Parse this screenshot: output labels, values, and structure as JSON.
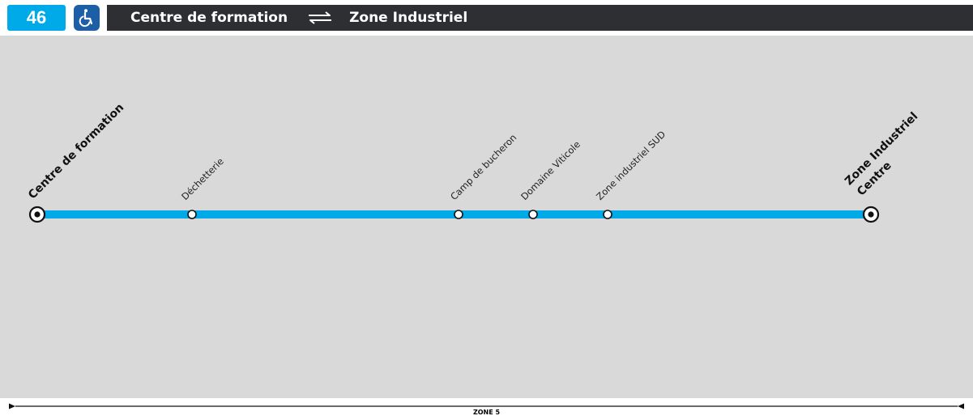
{
  "header": {
    "line_number": "46",
    "accessibility_icon": "wheelchair-icon",
    "origin": "Centre de formation",
    "direction_icon": "bidirectional-arrows-icon",
    "destination": "Zone Industriel"
  },
  "route": {
    "color": "#00a9e8",
    "start_terminus": "Centre de formation",
    "end_terminus_line1": "Zone Industriel",
    "end_terminus_line2": "Centre",
    "stops": [
      {
        "name": "Déchetterie"
      },
      {
        "name": "Camp de bucheron"
      },
      {
        "name": "Domaine Viticole"
      },
      {
        "name": "Zone industriel SUD"
      }
    ]
  },
  "zone": {
    "label": "ZONE 5"
  },
  "colors": {
    "line_badge": "#00a9e8",
    "accessibility_badge": "#1d5fa6",
    "titlebar": "#2d2f33",
    "map_background": "#d9d9d9"
  }
}
